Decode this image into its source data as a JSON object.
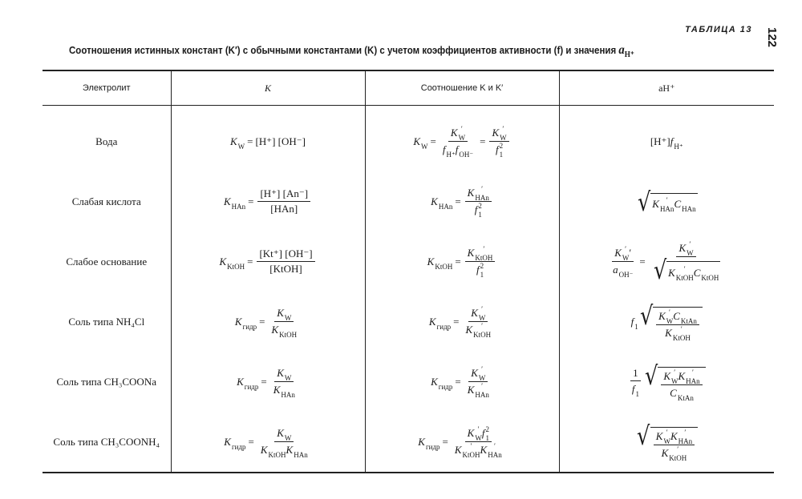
{
  "header": {
    "table_label": "ТАБЛИЦА 13",
    "page_number": "122",
    "caption": "Соотношения истинных констант (K′) с обычными константами (K) с учетом коэффициентов активности (f) и значения",
    "caption_symbol": "a",
    "caption_symbol_sub": "H⁺"
  },
  "columns": [
    "Электролит",
    "K",
    "Соотношение K и K′",
    "aH⁺"
  ],
  "rows": [
    {
      "electrolyte": "Вода",
      "k": [
        {
          "v": "K",
          "sub": "W"
        },
        "=",
        "[H⁺] [OH⁻]"
      ],
      "rel": [
        {
          "v": "K",
          "sub": "W"
        },
        "=",
        {
          "frac": [
            [
              {
                "v": "K",
                "sup": "′",
                "sub": "W"
              }
            ],
            [
              {
                "v": "f",
                "sub": "H⁺"
              },
              {
                "v": "f",
                "sub": "OH⁻"
              }
            ]
          ]
        },
        "=",
        {
          "frac": [
            [
              {
                "v": "K",
                "sup": "′",
                "sub": "W"
              }
            ],
            [
              {
                "v": "f",
                "sup": "2",
                "sub": "1"
              }
            ]
          ]
        }
      ],
      "ah": [
        "[H⁺]",
        {
          "v": "f",
          "sub": "H⁺"
        }
      ]
    },
    {
      "electrolyte": "Слабая кислота",
      "k": [
        {
          "v": "K",
          "sub": "HAn"
        },
        "=",
        {
          "frac": [
            [
              "[H⁺] [An⁻]"
            ],
            [
              "[HAn]"
            ]
          ]
        }
      ],
      "rel": [
        {
          "v": "K",
          "sub": "HAn"
        },
        "=",
        {
          "frac": [
            [
              {
                "v": "K",
                "sup": "′",
                "sub": "HAn"
              }
            ],
            [
              {
                "v": "f",
                "sup": "2",
                "sub": "1"
              }
            ]
          ]
        }
      ],
      "ah": [
        {
          "sqrt": [
            {
              "v": "K",
              "sup": "′",
              "sub": "HAn"
            },
            {
              "v": "C",
              "sub": "HAn"
            }
          ]
        }
      ]
    },
    {
      "electrolyte": "Слабое основание",
      "k": [
        {
          "v": "K",
          "sub": "KtOH"
        },
        "=",
        {
          "frac": [
            [
              "[Kt⁺] [OH⁻]"
            ],
            [
              "[KtOH]"
            ]
          ]
        }
      ],
      "rel": [
        {
          "v": "K",
          "sub": "KtOH"
        },
        "=",
        {
          "frac": [
            [
              {
                "v": "K",
                "sup": "′",
                "sub": "KtOH"
              }
            ],
            [
              {
                "v": "f",
                "sup": "2",
                "sub": "1"
              }
            ]
          ]
        }
      ],
      "ah": [
        {
          "frac": [
            [
              {
                "v": "K",
                "sup": "′",
                "sub": "W"
              },
              "′"
            ],
            [
              {
                "v": "a",
                "sub": "OH⁻"
              }
            ]
          ]
        },
        "=",
        {
          "frac": [
            [
              {
                "v": "K",
                "sup": "′",
                "sub": "W"
              }
            ],
            [
              {
                "sqrt": [
                  {
                    "v": "K",
                    "sup": "′",
                    "sub": "KtOH"
                  },
                  {
                    "v": "C",
                    "sub": "KtOH"
                  }
                ]
              }
            ]
          ]
        }
      ]
    },
    {
      "electrolyte": "Соль типа NH₄Cl",
      "k": [
        {
          "v": "K",
          "sub": "гидр"
        },
        "=",
        {
          "frac": [
            [
              {
                "v": "K",
                "sub": "W"
              }
            ],
            [
              {
                "v": "K",
                "sub": "KtOH"
              }
            ]
          ]
        }
      ],
      "rel": [
        {
          "v": "K",
          "sub": "гидр"
        },
        "=",
        {
          "frac": [
            [
              {
                "v": "K",
                "sup": "′",
                "sub": "W"
              }
            ],
            [
              {
                "v": "K",
                "sup": "′",
                "sub": "KtOH"
              }
            ]
          ]
        }
      ],
      "ah": [
        {
          "v": "f",
          "sub": "1"
        },
        {
          "sqrt": [
            {
              "frac": [
                [
                  {
                    "v": "K",
                    "sup": "′",
                    "sub": "W"
                  },
                  {
                    "v": "C",
                    "sub": "KtAn"
                  }
                ],
                [
                  {
                    "v": "K",
                    "sup": "′",
                    "sub": "KtOH"
                  }
                ]
              ]
            }
          ]
        }
      ]
    },
    {
      "electrolyte": "Соль типа CH₃COONa",
      "k": [
        {
          "v": "K",
          "sub": "гидр"
        },
        "=",
        {
          "frac": [
            [
              {
                "v": "K",
                "sub": "W"
              }
            ],
            [
              {
                "v": "K",
                "sub": "HAn"
              }
            ]
          ]
        }
      ],
      "rel": [
        {
          "v": "K",
          "sub": "гидр"
        },
        "=",
        {
          "frac": [
            [
              {
                "v": "K",
                "sup": "′",
                "sub": "W"
              }
            ],
            [
              {
                "v": "K",
                "sup": "′",
                "sub": "HAn"
              }
            ]
          ]
        }
      ],
      "ah": [
        {
          "frac": [
            [
              "1"
            ],
            [
              {
                "v": "f",
                "sub": "1"
              }
            ]
          ]
        },
        {
          "sqrt": [
            {
              "frac": [
                [
                  {
                    "v": "K",
                    "sup": "′",
                    "sub": "W"
                  },
                  {
                    "v": "K",
                    "sup": "′",
                    "sub": "HAn"
                  }
                ],
                [
                  {
                    "v": "C",
                    "sub": "KtAn"
                  }
                ]
              ]
            }
          ]
        }
      ]
    },
    {
      "electrolyte": "Соль типа CH₃COONH₄",
      "k": [
        {
          "v": "K",
          "sub": "гидр"
        },
        "=",
        {
          "frac": [
            [
              {
                "v": "K",
                "sub": "W"
              }
            ],
            [
              {
                "v": "K",
                "sub": "KtOH"
              },
              {
                "v": "K",
                "sub": "HAn"
              }
            ]
          ]
        }
      ],
      "rel": [
        {
          "v": "K",
          "sub": "гидр"
        },
        "=",
        {
          "frac": [
            [
              {
                "v": "K",
                "sup": "′",
                "sub": "W"
              },
              {
                "v": "f",
                "sup": "2",
                "sub": "1"
              }
            ],
            [
              {
                "v": "K",
                "sup": "′",
                "sub": "KtOH"
              },
              {
                "v": "K",
                "sup": "′",
                "sub": "HAn"
              }
            ]
          ]
        }
      ],
      "ah": [
        {
          "sqrt": [
            {
              "frac": [
                [
                  {
                    "v": "K",
                    "sup": "′",
                    "sub": "W"
                  },
                  {
                    "v": "K",
                    "sup": "′",
                    "sub": "HAn"
                  }
                ],
                [
                  {
                    "v": "K",
                    "sup": "′",
                    "sub": "KtOH"
                  }
                ]
              ]
            }
          ]
        }
      ]
    }
  ]
}
